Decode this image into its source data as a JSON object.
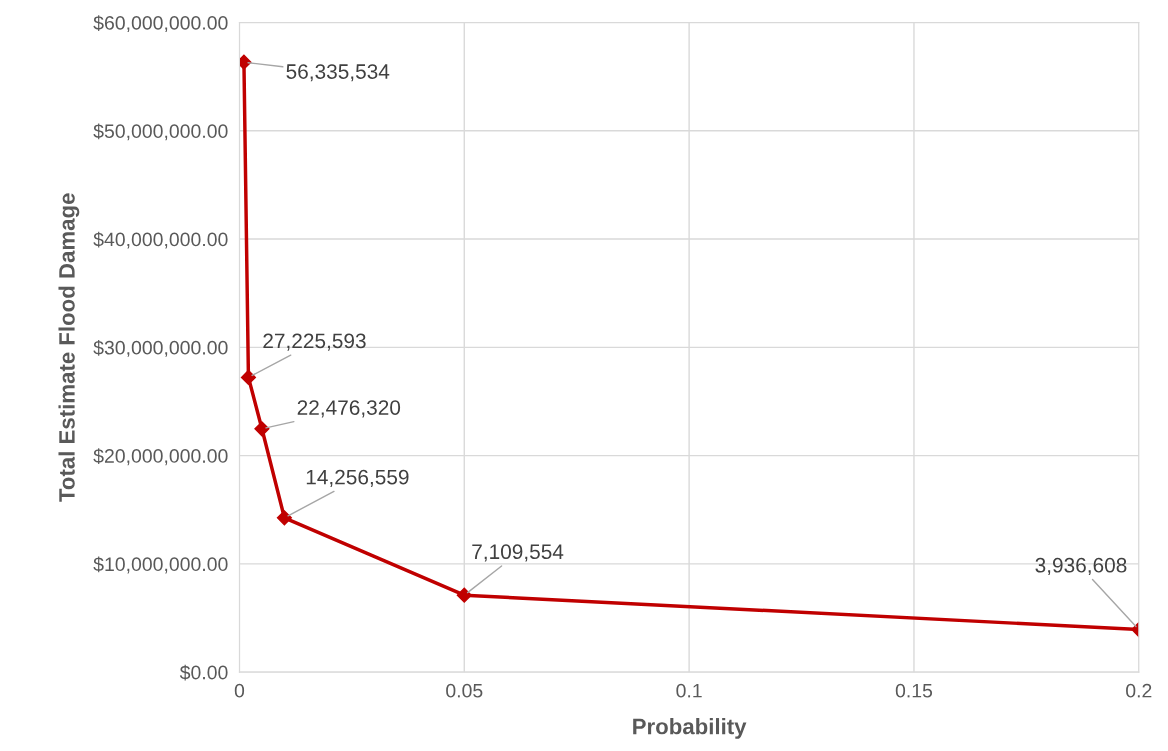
{
  "chart_data": {
    "type": "line",
    "xlabel": "Probability",
    "ylabel": "Total Estimate Flood Damage",
    "x": [
      0.001,
      0.002,
      0.005,
      0.01,
      0.05,
      0.2
    ],
    "series": [
      {
        "color": "#c00000",
        "values": [
          56335534,
          27225593,
          22476320,
          14256559,
          7109554,
          3936608
        ],
        "value_labels": [
          "56,335,534",
          "27,225,593",
          "22,476,320",
          "14,256,559",
          "7,109,554",
          "3,936,608"
        ]
      }
    ],
    "xlim": [
      0,
      0.2
    ],
    "xticks": [
      0,
      0.05,
      0.1,
      0.15,
      0.2
    ],
    "ylim": [
      0,
      60000000
    ],
    "yticks": [
      {
        "value": 0,
        "label": "$0.00"
      },
      {
        "value": 10000000,
        "label": "$10,000,000.00"
      },
      {
        "value": 20000000,
        "label": "$20,000,000.00"
      },
      {
        "value": 30000000,
        "label": "$30,000,000.00"
      },
      {
        "value": 40000000,
        "label": "$40,000,000.00"
      },
      {
        "value": 50000000,
        "label": "$50,000,000.00"
      },
      {
        "value": 60000000,
        "label": "$60,000,000.00"
      }
    ],
    "grid": true,
    "marker": "diamond",
    "line_style": "solid",
    "legend": false
  }
}
